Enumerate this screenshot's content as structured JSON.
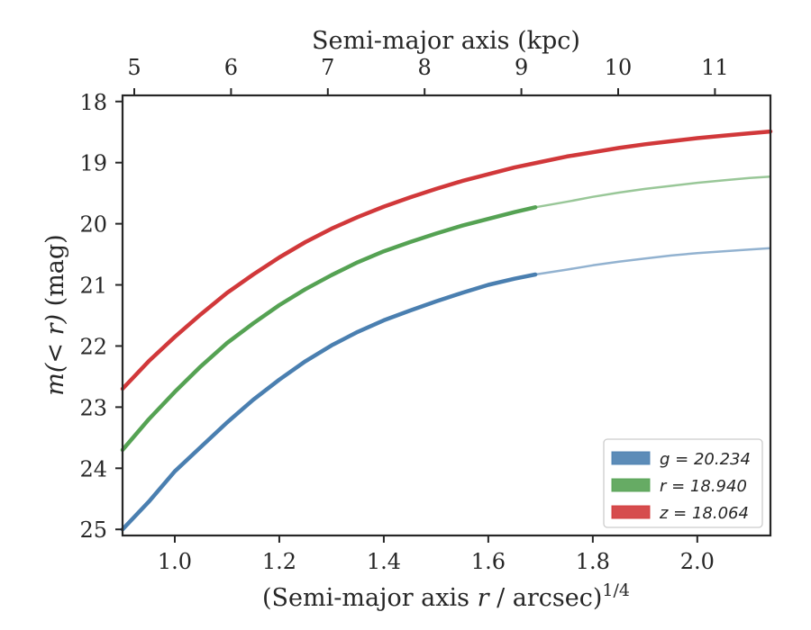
{
  "chart_data": {
    "type": "line",
    "xlabel": "(Semi-major axis r / arcsec)^1/4",
    "xlabel_parts": {
      "pre": "(Semi-major axis ",
      "var": "r",
      "post": " / arcsec)",
      "sup": "1/4"
    },
    "ylabel": "m(< r) (mag)",
    "ylabel_parts": {
      "math": "m(< r)",
      "unit": " (mag)"
    },
    "top_xlabel": "Semi-major axis (kpc)",
    "xlim": [
      0.9,
      2.14
    ],
    "ylim": [
      25.1,
      17.9
    ],
    "y_inverted": true,
    "xticks": [
      1.0,
      1.2,
      1.4,
      1.6,
      1.8,
      2.0
    ],
    "xtick_labels": [
      "1.0",
      "1.2",
      "1.4",
      "1.6",
      "1.8",
      "2.0"
    ],
    "yticks": [
      18,
      19,
      20,
      21,
      22,
      23,
      24,
      25
    ],
    "ytick_labels": [
      "18",
      "19",
      "20",
      "21",
      "22",
      "23",
      "24",
      "25"
    ],
    "top_ticks_kpc": [
      5,
      6,
      7,
      8,
      9,
      10,
      11
    ],
    "top_tick_labels": [
      "5",
      "6",
      "7",
      "8",
      "9",
      "10",
      "11"
    ],
    "legend_position": "lower-right",
    "grid": false,
    "series": [
      {
        "name": "g = 20.234",
        "color": "#4a7fb0",
        "solid_until": 1.69,
        "x": [
          0.9,
          0.95,
          1.0,
          1.05,
          1.1,
          1.15,
          1.2,
          1.25,
          1.3,
          1.35,
          1.4,
          1.45,
          1.5,
          1.55,
          1.6,
          1.65,
          1.69,
          1.75,
          1.8,
          1.85,
          1.9,
          1.95,
          2.0,
          2.05,
          2.1,
          2.14
        ],
        "y": [
          25.0,
          24.55,
          24.05,
          23.65,
          23.25,
          22.88,
          22.55,
          22.25,
          21.99,
          21.77,
          21.58,
          21.42,
          21.27,
          21.13,
          21.0,
          20.9,
          20.83,
          20.75,
          20.68,
          20.62,
          20.57,
          20.52,
          20.48,
          20.45,
          20.42,
          20.4
        ]
      },
      {
        "name": "r = 18.940",
        "color": "#55a253",
        "solid_until": 1.69,
        "x": [
          0.9,
          0.95,
          1.0,
          1.05,
          1.1,
          1.15,
          1.2,
          1.25,
          1.3,
          1.35,
          1.4,
          1.45,
          1.5,
          1.55,
          1.6,
          1.65,
          1.69,
          1.75,
          1.8,
          1.85,
          1.9,
          1.95,
          2.0,
          2.05,
          2.1,
          2.14
        ],
        "y": [
          23.7,
          23.2,
          22.75,
          22.33,
          21.95,
          21.63,
          21.33,
          21.07,
          20.84,
          20.63,
          20.45,
          20.3,
          20.16,
          20.03,
          19.92,
          19.81,
          19.73,
          19.64,
          19.56,
          19.49,
          19.43,
          19.38,
          19.33,
          19.29,
          19.25,
          19.23
        ]
      },
      {
        "name": "z = 18.064",
        "color": "#d1383a",
        "solid_until": 2.14,
        "x": [
          0.9,
          0.95,
          1.0,
          1.05,
          1.1,
          1.15,
          1.2,
          1.25,
          1.3,
          1.35,
          1.4,
          1.45,
          1.5,
          1.55,
          1.6,
          1.65,
          1.7,
          1.75,
          1.8,
          1.85,
          1.9,
          1.95,
          2.0,
          2.05,
          2.1,
          2.14
        ],
        "y": [
          22.7,
          22.25,
          21.85,
          21.48,
          21.13,
          20.83,
          20.55,
          20.3,
          20.08,
          19.89,
          19.72,
          19.57,
          19.43,
          19.3,
          19.19,
          19.08,
          18.99,
          18.9,
          18.83,
          18.76,
          18.7,
          18.65,
          18.6,
          18.56,
          18.52,
          18.49
        ]
      }
    ]
  }
}
